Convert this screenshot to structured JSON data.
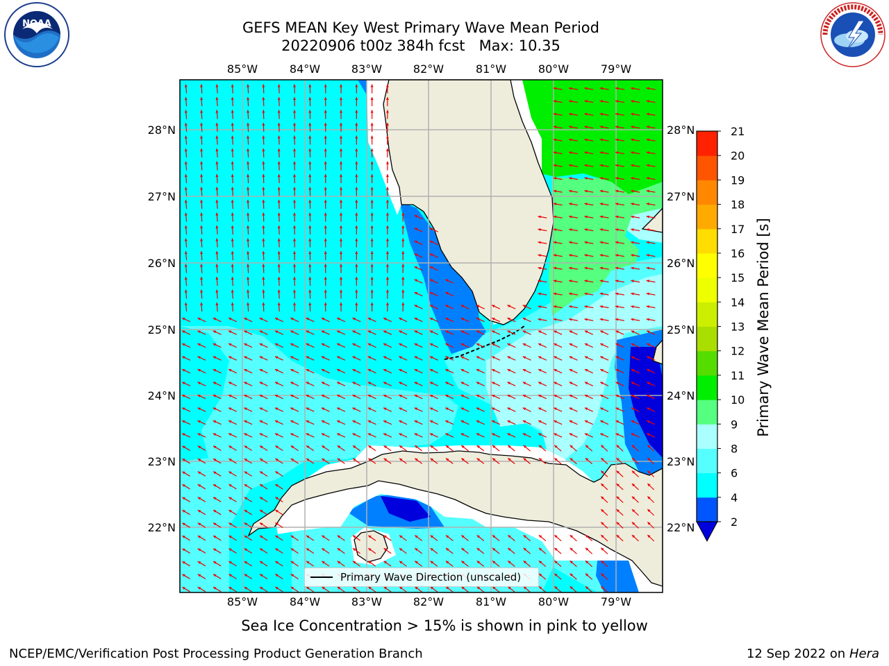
{
  "header": {
    "title_line1": "GEFS MEAN Key West Primary Wave Mean Period",
    "run": "20220906 t00z 384h fcst",
    "max_label": "Max: 10.35"
  },
  "logos": {
    "left": "NOAA",
    "right": "NATIONAL WEATHER SERVICE"
  },
  "map": {
    "lon_labels": [
      "85°W",
      "84°W",
      "83°W",
      "82°W",
      "81°W",
      "80°W",
      "79°W"
    ],
    "lat_labels": [
      "28°N",
      "27°N",
      "26°N",
      "25°N",
      "24°N",
      "23°N",
      "22°N"
    ],
    "legend_label": "Primary Wave Direction (unscaled)",
    "colors": {
      "land": "#eeeddc",
      "ocean_4_6": "#00ffff",
      "ocean_6_8": "#55ffff",
      "ocean_8_9": "#aaffff",
      "ocean_9_10": "#55ff80",
      "ocean_10_11": "#00ee00",
      "ocean_2_4": "#0080ff",
      "ocean_lt_2": "#0000dd",
      "arrow": "#ee0000",
      "grid": "#b0b0b0"
    }
  },
  "colorbar": {
    "label": "Primary Wave Mean Period [s]",
    "ticks": [
      "2",
      "4",
      "6",
      "8",
      "9",
      "10",
      "11",
      "12",
      "13",
      "14",
      "15",
      "16",
      "17",
      "18",
      "19",
      "20",
      "21"
    ],
    "colors": [
      "#0055ff",
      "#00ffff",
      "#55ffff",
      "#aaffff",
      "#55ff80",
      "#00ee00",
      "#55dd00",
      "#aadd00",
      "#ccee00",
      "#eeff00",
      "#ffff00",
      "#ffdd00",
      "#ffaa00",
      "#ff8800",
      "#ff5500",
      "#ff2200",
      "#ff0000"
    ],
    "under_color": "#0000dd"
  },
  "note": "Sea Ice Concentration > 15% is shown in pink to yellow",
  "footer": {
    "left": "NCEP/EMC/Verification Post Processing Product Generation Branch",
    "right_date": "12 Sep 2022 on",
    "right_host": "Hera"
  }
}
